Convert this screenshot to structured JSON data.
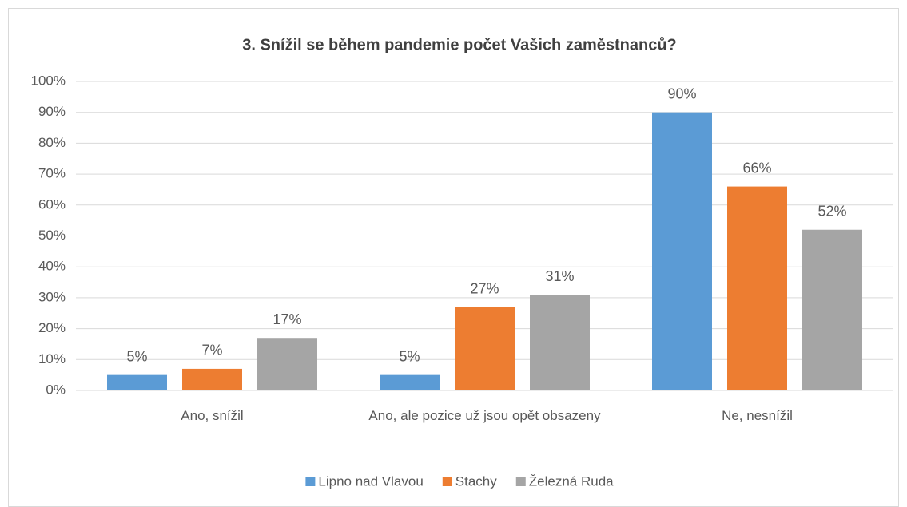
{
  "chart_data": {
    "type": "bar",
    "title": "3. Snížil se během pandemie počet Vašich zaměstnanců?",
    "categories": [
      "Ano, snížil",
      "Ano, ale pozice už jsou opět obsazeny",
      "Ne, nesnížil"
    ],
    "series": [
      {
        "name": "Lipno nad Vlavou",
        "color": "#5b9bd5",
        "values": [
          5,
          5,
          90
        ],
        "value_labels": [
          "5%",
          "5%",
          "90%"
        ]
      },
      {
        "name": "Stachy",
        "color": "#ed7d31",
        "values": [
          7,
          27,
          66
        ],
        "value_labels": [
          "7%",
          "27%",
          "66%"
        ]
      },
      {
        "name": "Železná Ruda",
        "color": "#a5a5a5",
        "values": [
          17,
          31,
          52
        ],
        "value_labels": [
          "17%",
          "31%",
          "52%"
        ]
      }
    ],
    "ylim": [
      0,
      100
    ],
    "yticks": [
      {
        "value": 0,
        "label": "0%"
      },
      {
        "value": 10,
        "label": "10%"
      },
      {
        "value": 20,
        "label": "20%"
      },
      {
        "value": 30,
        "label": "30%"
      },
      {
        "value": 40,
        "label": "40%"
      },
      {
        "value": 50,
        "label": "50%"
      },
      {
        "value": 60,
        "label": "60%"
      },
      {
        "value": 70,
        "label": "70%"
      },
      {
        "value": 80,
        "label": "80%"
      },
      {
        "value": 90,
        "label": "90%"
      },
      {
        "value": 100,
        "label": "100%"
      }
    ],
    "grid": true,
    "legend": "bottom"
  }
}
